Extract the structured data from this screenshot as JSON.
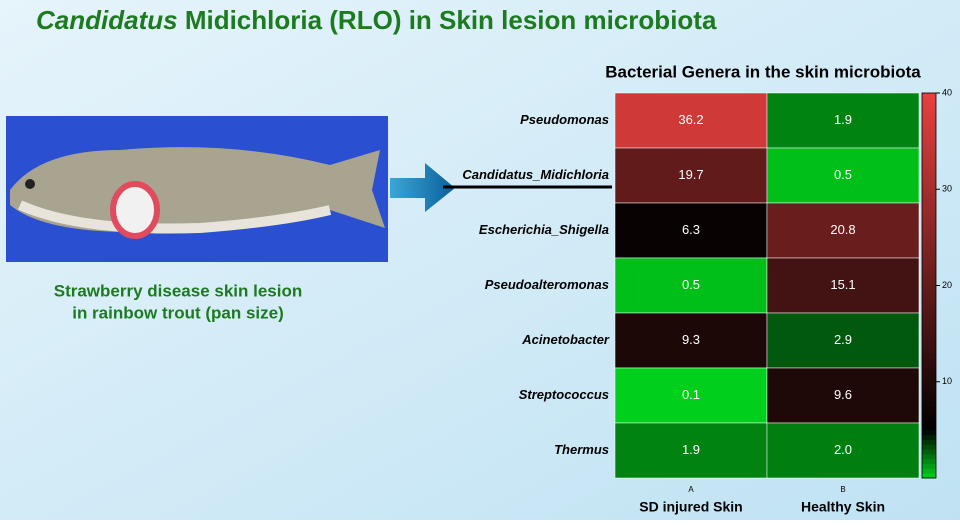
{
  "title_italic": "Candidatus",
  "title_rest": "Midichloria (RLO) in Skin lesion microbiota",
  "caption": [
    "Strawberry disease skin lesion",
    "in rainbow trout (pan size)"
  ],
  "chart_data": {
    "type": "heatmap",
    "title": "Bacterial Genera in the skin microbiota",
    "rows": [
      "Pseudomonas",
      "Candidatus_Midichloria",
      "Escherichia_Shigella",
      "Pseudoalteromonas",
      "Acinetobacter",
      "Streptococcus",
      "Thermus"
    ],
    "column_letters": [
      "A",
      "B"
    ],
    "columns": [
      "SD injured Skin",
      "Healthy Skin"
    ],
    "values": [
      [
        36.2,
        1.9
      ],
      [
        19.7,
        0.5
      ],
      [
        6.3,
        20.8
      ],
      [
        0.5,
        15.1
      ],
      [
        9.3,
        2.9
      ],
      [
        0.1,
        9.6
      ],
      [
        1.9,
        2.0
      ]
    ],
    "value_labels": [
      [
        "36.2",
        "1.9"
      ],
      [
        "19.7",
        "0.5"
      ],
      [
        "6.3",
        "20.8"
      ],
      [
        "0.5",
        "15.1"
      ],
      [
        "9.3",
        "2.9"
      ],
      [
        "0.1",
        "9.6"
      ],
      [
        "1.9",
        "2.0"
      ]
    ],
    "zlim": [
      0,
      40
    ],
    "zticks": [
      10,
      20,
      30,
      40
    ],
    "colorscale": [
      [
        0,
        "#00d41c"
      ],
      [
        5,
        "#000000"
      ],
      [
        40,
        "#e8403f"
      ]
    ]
  }
}
